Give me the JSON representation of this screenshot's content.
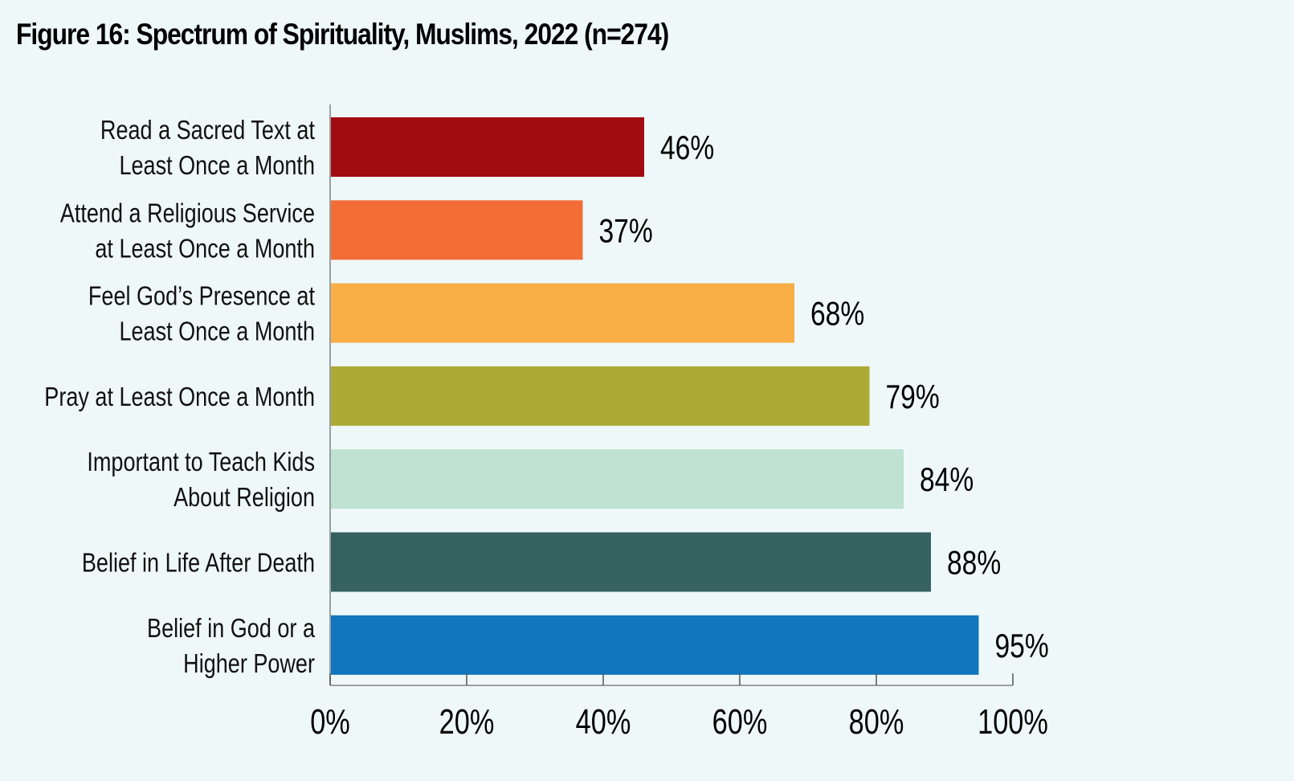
{
  "chart_data": {
    "type": "bar",
    "orientation": "horizontal",
    "title": "Figure 16: Spectrum of Spirituality, Muslims, 2022 (n=274)",
    "xlabel": "",
    "ylabel": "",
    "xlim": [
      0,
      100
    ],
    "grid": false,
    "legend": null,
    "categories": [
      [
        "Read a Sacred Text at",
        "Least Once a Month"
      ],
      [
        "Attend a Religious Service",
        "at Least Once a Month"
      ],
      [
        "Feel God’s Presence at",
        "Least Once a Month"
      ],
      [
        "Pray at Least Once a Month"
      ],
      [
        "Important to Teach Kids",
        "About Religion"
      ],
      [
        "Belief in Life After Death"
      ],
      [
        "Belief in God or a",
        "Higher Power"
      ]
    ],
    "values": [
      46,
      37,
      68,
      79,
      84,
      88,
      95
    ],
    "value_labels": [
      "46%",
      "37%",
      "68%",
      "79%",
      "84%",
      "88%",
      "95%"
    ],
    "colors": [
      "#a00c12",
      "#f26d36",
      "#f9ae46",
      "#acab36",
      "#bfe2d3",
      "#356261",
      "#1176bd"
    ],
    "xticks": [
      0,
      20,
      40,
      60,
      80,
      100
    ],
    "xtick_labels": [
      "0%",
      "20%",
      "40%",
      "60%",
      "80%",
      "100%"
    ]
  }
}
